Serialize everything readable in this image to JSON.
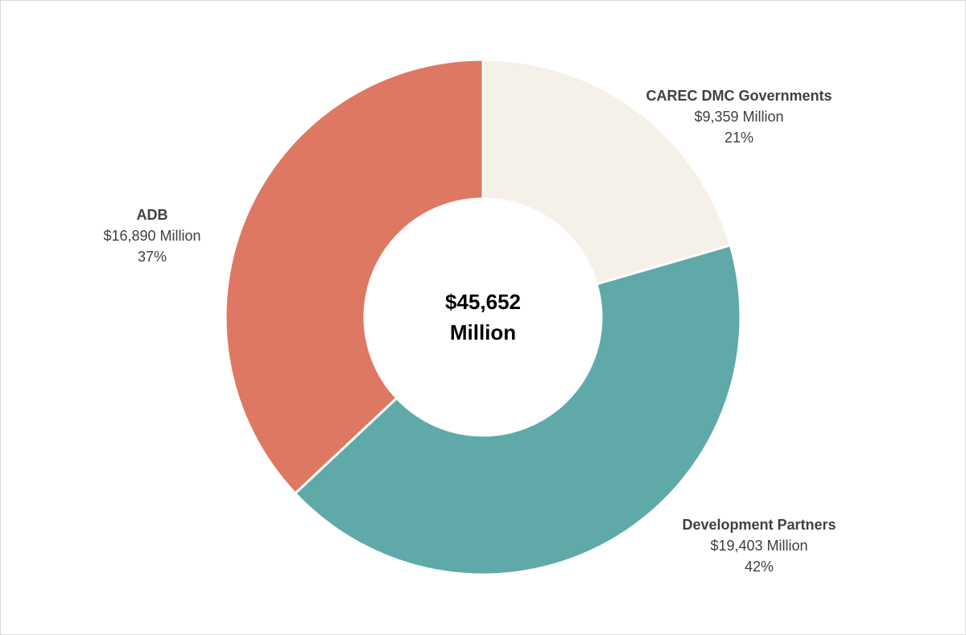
{
  "chart_data": {
    "type": "pie",
    "variant": "donut",
    "title": "",
    "center_label": {
      "line1": "$45,652",
      "line2": "Million"
    },
    "slices": [
      {
        "name": "CAREC DMC Governments",
        "value": 9359,
        "amount_label": "$9,359 Million",
        "percent_label": "21%",
        "color": "#F5F1E8"
      },
      {
        "name": "Development Partners",
        "value": 19403,
        "amount_label": "$19,403 Million",
        "percent_label": "42%",
        "color": "#5FAAA8"
      },
      {
        "name": "ADB",
        "value": 16890,
        "amount_label": "$16,890 Million",
        "percent_label": "37%",
        "color": "#DF7862"
      }
    ],
    "start_angle": "12 o'clock",
    "direction": "clockwise",
    "legend": "none"
  }
}
